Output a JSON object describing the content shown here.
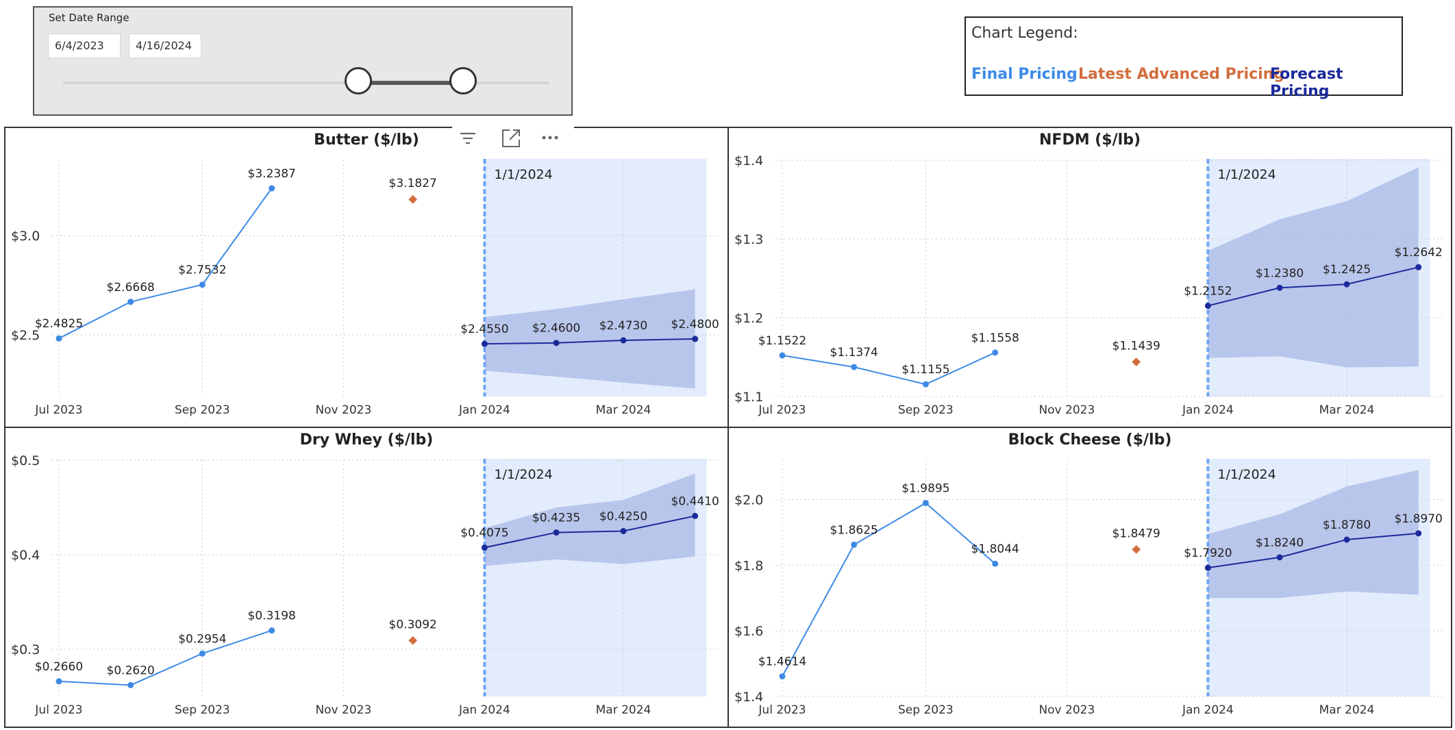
{
  "slicer": {
    "title": "Set Date Range",
    "start_date": "6/4/2023",
    "end_date": "4/16/2024"
  },
  "legend": {
    "title": "Chart Legend:",
    "items": [
      {
        "label": "Final Pricing",
        "color": "#3d8ae6"
      },
      {
        "label": "Latest Advanced Pricing",
        "color": "#d26d3d"
      },
      {
        "label": "Forecast Pricing",
        "color": "#1b2a9b"
      }
    ]
  },
  "colors": {
    "final": "#3d8ae6",
    "advanced": "#d26d3d",
    "forecast": "#1b2a9b",
    "band": "#b6c4ea",
    "shade": "#e2ecfd",
    "marker_line": "#6fa6f3"
  },
  "toolbar_icons": [
    "filter-icon",
    "focus-mode-icon",
    "more-options-icon"
  ],
  "chart_data": [
    {
      "type": "line",
      "title": "Butter ($/lb)",
      "x_ticks": [
        "Jul 2023",
        "Sep 2023",
        "Nov 2023",
        "Jan 2024",
        "Mar 2024"
      ],
      "y_ticks": [
        "$2.5",
        "$3.0"
      ],
      "y_tick_values": [
        2.5,
        3.0
      ],
      "ylim": [
        2.19,
        3.38
      ],
      "final": {
        "x": [
          "2023-07-01",
          "2023-08-01",
          "2023-09-01",
          "2023-10-01"
        ],
        "values": [
          2.4825,
          2.6668,
          2.7532,
          3.2387
        ],
        "labels": [
          "$2.4825",
          "$2.6668",
          "$2.7532",
          "$3.2387"
        ]
      },
      "advanced": {
        "x": [
          "2023-12-01"
        ],
        "values": [
          3.1827
        ],
        "labels": [
          "$3.1827"
        ]
      },
      "forecast": {
        "x": [
          "2024-01-01",
          "2024-02-01",
          "2024-03-01",
          "2024-04-01"
        ],
        "values": [
          2.455,
          2.46,
          2.473,
          2.48
        ],
        "labels": [
          "$2.4550",
          "$2.4600",
          "$2.4730",
          "$2.4800"
        ]
      },
      "forecast_band": {
        "upper": [
          2.59,
          2.63,
          2.68,
          2.73
        ],
        "lower": [
          2.32,
          2.29,
          2.26,
          2.23
        ]
      },
      "marker": {
        "date": "2024-01-01",
        "label": "1/1/2024"
      }
    },
    {
      "type": "line",
      "title": "NFDM ($/lb)",
      "x_ticks": [
        "Jul 2023",
        "Sep 2023",
        "Nov 2023",
        "Jan 2024",
        "Mar 2024"
      ],
      "y_ticks": [
        "$1.1",
        "$1.2",
        "$1.3",
        "$1.4"
      ],
      "y_tick_values": [
        1.1,
        1.2,
        1.3,
        1.4
      ],
      "ylim": [
        1.1,
        1.4
      ],
      "final": {
        "x": [
          "2023-07-01",
          "2023-08-01",
          "2023-09-01",
          "2023-10-01"
        ],
        "values": [
          1.1522,
          1.1374,
          1.1155,
          1.1558
        ],
        "labels": [
          "$1.1522",
          "$1.1374",
          "$1.1155",
          "$1.1558"
        ]
      },
      "advanced": {
        "x": [
          "2023-12-01"
        ],
        "values": [
          1.1439
        ],
        "labels": [
          "$1.1439"
        ]
      },
      "forecast": {
        "x": [
          "2024-01-01",
          "2024-02-01",
          "2024-03-01",
          "2024-04-01"
        ],
        "values": [
          1.2152,
          1.238,
          1.2425,
          1.2642
        ],
        "labels": [
          "$1.2152",
          "$1.2380",
          "$1.2425",
          "$1.2642"
        ]
      },
      "forecast_band": {
        "upper": [
          1.285,
          1.325,
          1.348,
          1.391
        ],
        "lower": [
          1.149,
          1.151,
          1.137,
          1.138
        ]
      },
      "marker": {
        "date": "2024-01-01",
        "label": "1/1/2024"
      }
    },
    {
      "type": "line",
      "title": "Dry Whey ($/lb)",
      "x_ticks": [
        "Jul 2023",
        "Sep 2023",
        "Nov 2023",
        "Jan 2024",
        "Mar 2024"
      ],
      "y_ticks": [
        "$0.3",
        "$0.4",
        "$0.5"
      ],
      "y_tick_values": [
        0.3,
        0.4,
        0.5
      ],
      "ylim": [
        0.25,
        0.5
      ],
      "final": {
        "x": [
          "2023-07-01",
          "2023-08-01",
          "2023-09-01",
          "2023-10-01"
        ],
        "values": [
          0.266,
          0.262,
          0.2954,
          0.3198
        ],
        "labels": [
          "$0.2660",
          "$0.2620",
          "$0.2954",
          "$0.3198"
        ]
      },
      "advanced": {
        "x": [
          "2023-12-01"
        ],
        "values": [
          0.3092
        ],
        "labels": [
          "$0.3092"
        ]
      },
      "forecast": {
        "x": [
          "2024-01-01",
          "2024-02-01",
          "2024-03-01",
          "2024-04-01"
        ],
        "values": [
          0.4075,
          0.4235,
          0.425,
          0.441
        ],
        "labels": [
          "$0.4075",
          "$0.4235",
          "$0.4250",
          "$0.4410"
        ]
      },
      "forecast_band": {
        "upper": [
          0.428,
          0.45,
          0.458,
          0.486
        ],
        "lower": [
          0.388,
          0.395,
          0.39,
          0.398
        ]
      },
      "marker": {
        "date": "2024-01-01",
        "label": "1/1/2024"
      }
    },
    {
      "type": "line",
      "title": "Block Cheese ($/lb)",
      "x_ticks": [
        "Jul 2023",
        "Sep 2023",
        "Nov 2023",
        "Jan 2024",
        "Mar 2024"
      ],
      "y_ticks": [
        "$1.4",
        "$1.6",
        "$1.8",
        "$2.0"
      ],
      "y_tick_values": [
        1.4,
        1.6,
        1.8,
        2.0
      ],
      "ylim": [
        1.4,
        2.12
      ],
      "final": {
        "x": [
          "2023-07-01",
          "2023-08-01",
          "2023-09-01",
          "2023-10-01"
        ],
        "values": [
          1.4614,
          1.8625,
          1.9895,
          1.8044
        ],
        "labels": [
          "$1.4614",
          "$1.8625",
          "$1.9895",
          "$1.8044"
        ]
      },
      "advanced": {
        "x": [
          "2023-12-01"
        ],
        "values": [
          1.8479
        ],
        "labels": [
          "$1.8479"
        ]
      },
      "forecast": {
        "x": [
          "2024-01-01",
          "2024-02-01",
          "2024-03-01",
          "2024-04-01"
        ],
        "values": [
          1.792,
          1.824,
          1.878,
          1.897
        ],
        "labels": [
          "$1.7920",
          "$1.8240",
          "$1.8780",
          "$1.8970"
        ]
      },
      "forecast_band": {
        "upper": [
          1.895,
          1.955,
          2.04,
          2.09
        ],
        "lower": [
          1.7,
          1.7,
          1.72,
          1.71
        ]
      },
      "marker": {
        "date": "2024-01-01",
        "label": "1/1/2024"
      }
    }
  ]
}
